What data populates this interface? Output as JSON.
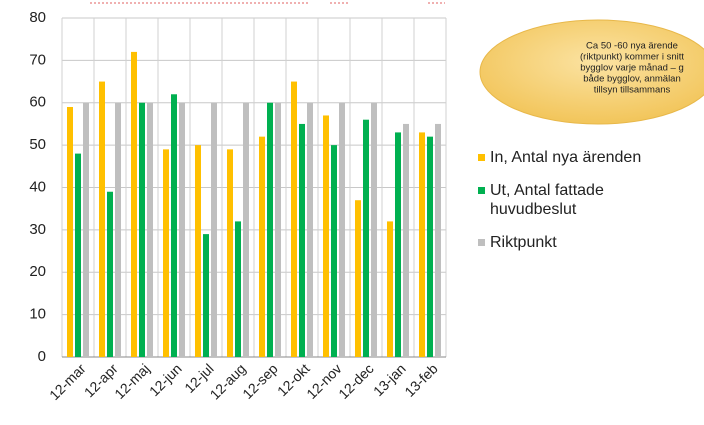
{
  "chart_data": {
    "type": "bar",
    "categories": [
      "12-mar",
      "12-apr",
      "12-maj",
      "12-jun",
      "12-jul",
      "12-aug",
      "12-sep",
      "12-okt",
      "12-nov",
      "12-dec",
      "13-jan",
      "13-feb"
    ],
    "series": [
      {
        "name": "In, Antal nya ärenden",
        "color": "#ffc000",
        "values": [
          59,
          65,
          72,
          49,
          50,
          49,
          52,
          65,
          57,
          37,
          32,
          53
        ]
      },
      {
        "name": "Ut, Antal fattade huvudbeslut",
        "color": "#00b050",
        "values": [
          48,
          39,
          60,
          62,
          29,
          32,
          60,
          55,
          50,
          56,
          53,
          52
        ]
      },
      {
        "name": "Riktpunkt",
        "color": "#bfbfbf",
        "values": [
          60,
          60,
          60,
          60,
          60,
          60,
          60,
          60,
          60,
          60,
          55,
          55
        ]
      }
    ],
    "ylim": [
      0,
      80
    ],
    "yticks": [
      0,
      10,
      20,
      30,
      40,
      50,
      60,
      70,
      80
    ],
    "grid": true,
    "annotation": [
      "Ca 50 -60 nya ärende",
      "(riktpunkt) kommer i snitt",
      "bygglov   varje månad – g",
      "både bygglov, anmälan",
      "tillsyn tillsammans"
    ]
  }
}
